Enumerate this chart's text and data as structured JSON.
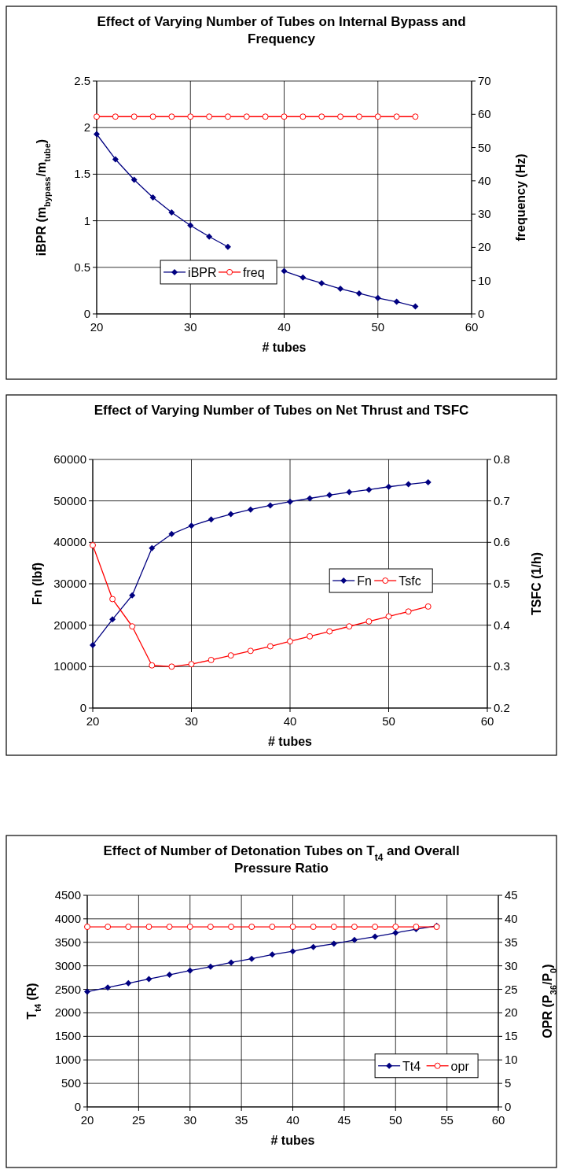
{
  "chart_data": [
    {
      "type": "line",
      "title": "Effect of Varying Number of Tubes on Internal Bypass and Frequency",
      "xlabel": "# tubes",
      "ylabel": "iBPR (m$_{bypass}$/m$_{tube}$)",
      "y2label": "frequency (Hz)",
      "x": [
        20,
        22,
        24,
        26,
        28,
        30,
        32,
        34,
        36,
        38,
        40,
        42,
        44,
        46,
        48,
        50,
        52,
        54
      ],
      "series": [
        {
          "name": "iBPR",
          "color": "#000080",
          "marker": "diamond",
          "values": [
            1.93,
            1.66,
            1.44,
            1.25,
            1.09,
            0.95,
            0.83,
            0.72,
            null,
            null,
            0.46,
            0.39,
            0.33,
            0.27,
            0.22,
            0.17,
            0.13,
            0.08
          ]
        },
        {
          "name": "freq",
          "color": "#ff0000",
          "marker": "circle",
          "axis": "y2",
          "values": [
            59.3,
            59.3,
            59.3,
            59.3,
            59.3,
            59.3,
            59.3,
            59.3,
            59.3,
            59.3,
            59.3,
            59.3,
            59.3,
            59.3,
            59.3,
            59.3,
            59.3,
            59.3
          ]
        }
      ],
      "xlim": [
        20,
        60
      ],
      "xticks": [
        20,
        30,
        40,
        50,
        60
      ],
      "ylim": [
        0,
        2.5
      ],
      "yticks": [
        0,
        0.5,
        1,
        1.5,
        2,
        2.5
      ],
      "y2lim": [
        0,
        70
      ],
      "y2ticks": [
        0,
        10,
        20,
        30,
        40,
        50,
        60,
        70
      ],
      "grid": true,
      "legend": "left"
    },
    {
      "type": "line",
      "title": "Effect of Varying Number of Tubes on Net Thrust and TSFC",
      "xlabel": "# tubes",
      "ylabel": "Fn (lbf)",
      "y2label": "TSFC (1/h)",
      "x": [
        20,
        22,
        24,
        26,
        28,
        30,
        32,
        34,
        36,
        38,
        40,
        42,
        44,
        46,
        48,
        50,
        52,
        54
      ],
      "series": [
        {
          "name": "Fn",
          "color": "#000080",
          "marker": "diamond",
          "values": [
            15200,
            21400,
            27200,
            38600,
            42000,
            44000,
            45500,
            46800,
            47900,
            48900,
            49800,
            50600,
            51400,
            52100,
            52700,
            53400,
            54000,
            54500
          ]
        },
        {
          "name": "Tsfc",
          "color": "#ff0000",
          "marker": "circle",
          "axis": "y2",
          "values": [
            0.593,
            0.463,
            0.397,
            0.303,
            0.3,
            0.306,
            0.316,
            0.327,
            0.338,
            0.349,
            0.361,
            0.373,
            0.385,
            0.397,
            0.409,
            0.421,
            0.433,
            0.445
          ]
        }
      ],
      "xlim": [
        20,
        60
      ],
      "xticks": [
        20,
        30,
        40,
        50,
        60
      ],
      "ylim": [
        0,
        60000
      ],
      "yticks": [
        0,
        10000,
        20000,
        30000,
        40000,
        50000,
        60000
      ],
      "y2lim": [
        0.2,
        0.8
      ],
      "y2ticks": [
        0.2,
        0.3,
        0.4,
        0.5,
        0.6,
        0.7,
        0.8
      ],
      "grid": true,
      "legend": "right"
    },
    {
      "type": "line",
      "title": "Effect of  Number of Detonation Tubes on T$_{t4}$ and Overall Pressure Ratio",
      "xlabel": "# tubes",
      "ylabel": "T$_{t4}$ (R)",
      "y2label": "OPR (P$_{36}$/P$_{0}$)",
      "x": [
        20,
        22,
        24,
        26,
        28,
        30,
        32,
        34,
        36,
        38,
        40,
        42,
        44,
        46,
        48,
        50,
        52,
        54
      ],
      "series": [
        {
          "name": "Tt4",
          "color": "#000080",
          "marker": "diamond",
          "values": [
            2450,
            2540,
            2630,
            2720,
            2810,
            2900,
            2980,
            3070,
            3150,
            3240,
            3310,
            3400,
            3470,
            3550,
            3620,
            3700,
            3780,
            3850
          ]
        },
        {
          "name": "opr",
          "color": "#ff0000",
          "marker": "circle",
          "axis": "y2",
          "values": [
            38.3,
            38.3,
            38.3,
            38.3,
            38.3,
            38.3,
            38.3,
            38.3,
            38.3,
            38.3,
            38.3,
            38.3,
            38.3,
            38.3,
            38.3,
            38.3,
            38.3,
            38.3
          ]
        }
      ],
      "xlim": [
        20,
        60
      ],
      "xticks": [
        20,
        25,
        30,
        35,
        40,
        45,
        50,
        55,
        60
      ],
      "ylim": [
        0,
        4500
      ],
      "yticks": [
        0,
        500,
        1000,
        1500,
        2000,
        2500,
        3000,
        3500,
        4000,
        4500
      ],
      "y2lim": [
        0,
        45
      ],
      "y2ticks": [
        0,
        5,
        10,
        15,
        20,
        25,
        30,
        35,
        40,
        45
      ],
      "grid": true,
      "legend": "bottom right"
    }
  ]
}
